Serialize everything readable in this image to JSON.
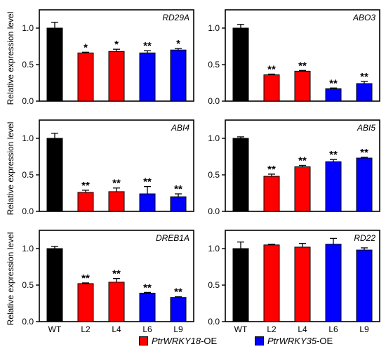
{
  "figure": {
    "ylabel": "Relative expression level",
    "categories": [
      "WT",
      "L2",
      "L4",
      "L6",
      "L9"
    ],
    "legend": [
      {
        "prefix": "",
        "italic": "PtrWRKY18",
        "suffix": "-OE",
        "color": "#ff0000"
      },
      {
        "prefix": "",
        "italic": "PtrWRKY35",
        "suffix": "-OE",
        "color": "#0000ff"
      }
    ]
  },
  "chart_data": [
    {
      "type": "bar",
      "title": "RD29A",
      "categories": [
        "WT",
        "L2",
        "L4",
        "L6",
        "L9"
      ],
      "values": [
        1.0,
        0.66,
        0.68,
        0.66,
        0.7
      ],
      "errors": [
        0.08,
        0.01,
        0.03,
        0.03,
        0.02
      ],
      "significance": [
        "",
        "*",
        "*",
        "**",
        "*"
      ],
      "colors": [
        "#000000",
        "#ff0000",
        "#ff0000",
        "#0000ff",
        "#0000ff"
      ],
      "ylim": [
        0,
        1.25
      ],
      "yticks": [
        "0.0",
        "0.5",
        "1.0"
      ],
      "ylabel": "Relative expression level"
    },
    {
      "type": "bar",
      "title": "ABO3",
      "categories": [
        "WT",
        "L2",
        "L4",
        "L6",
        "L9"
      ],
      "values": [
        1.0,
        0.36,
        0.41,
        0.17,
        0.24
      ],
      "errors": [
        0.05,
        0.01,
        0.01,
        0.01,
        0.03
      ],
      "significance": [
        "",
        "**",
        "**",
        "**",
        "**"
      ],
      "colors": [
        "#000000",
        "#ff0000",
        "#ff0000",
        "#0000ff",
        "#0000ff"
      ],
      "ylim": [
        0,
        1.25
      ],
      "yticks": [
        "0.0",
        "0.5",
        "1.0"
      ],
      "ylabel": ""
    },
    {
      "type": "bar",
      "title": "ABI4",
      "categories": [
        "WT",
        "L2",
        "L4",
        "L6",
        "L9"
      ],
      "values": [
        1.0,
        0.26,
        0.27,
        0.24,
        0.2
      ],
      "errors": [
        0.07,
        0.03,
        0.05,
        0.1,
        0.04
      ],
      "significance": [
        "",
        "**",
        "**",
        "**",
        "**"
      ],
      "colors": [
        "#000000",
        "#ff0000",
        "#ff0000",
        "#0000ff",
        "#0000ff"
      ],
      "ylim": [
        0,
        1.25
      ],
      "yticks": [
        "0.0",
        "0.5",
        "1.0"
      ],
      "ylabel": "Relative expression level"
    },
    {
      "type": "bar",
      "title": "ABI5",
      "categories": [
        "WT",
        "L2",
        "L4",
        "L6",
        "L9"
      ],
      "values": [
        1.0,
        0.48,
        0.61,
        0.68,
        0.73
      ],
      "errors": [
        0.02,
        0.03,
        0.02,
        0.03,
        0.01
      ],
      "significance": [
        "",
        "**",
        "**",
        "**",
        "**"
      ],
      "colors": [
        "#000000",
        "#ff0000",
        "#ff0000",
        "#0000ff",
        "#0000ff"
      ],
      "ylim": [
        0,
        1.25
      ],
      "yticks": [
        "0.0",
        "0.5",
        "1.0"
      ],
      "ylabel": ""
    },
    {
      "type": "bar",
      "title": "DREB1A",
      "categories": [
        "WT",
        "L2",
        "L4",
        "L6",
        "L9"
      ],
      "values": [
        1.0,
        0.52,
        0.54,
        0.39,
        0.33
      ],
      "errors": [
        0.03,
        0.01,
        0.05,
        0.01,
        0.01
      ],
      "significance": [
        "",
        "**",
        "**",
        "**",
        "**"
      ],
      "colors": [
        "#000000",
        "#ff0000",
        "#ff0000",
        "#0000ff",
        "#0000ff"
      ],
      "ylim": [
        0,
        1.25
      ],
      "yticks": [
        "0.0",
        "0.5",
        "1.0"
      ],
      "ylabel": "Relative expression level"
    },
    {
      "type": "bar",
      "title": "RD22",
      "categories": [
        "WT",
        "L2",
        "L4",
        "L6",
        "L9"
      ],
      "values": [
        1.0,
        1.05,
        1.02,
        1.06,
        0.98
      ],
      "errors": [
        0.09,
        0.01,
        0.05,
        0.08,
        0.03
      ],
      "significance": [
        "",
        "",
        "",
        "",
        ""
      ],
      "colors": [
        "#000000",
        "#ff0000",
        "#ff0000",
        "#0000ff",
        "#0000ff"
      ],
      "ylim": [
        0,
        1.25
      ],
      "yticks": [
        "0.0",
        "0.5",
        "1.0"
      ],
      "ylabel": ""
    }
  ]
}
